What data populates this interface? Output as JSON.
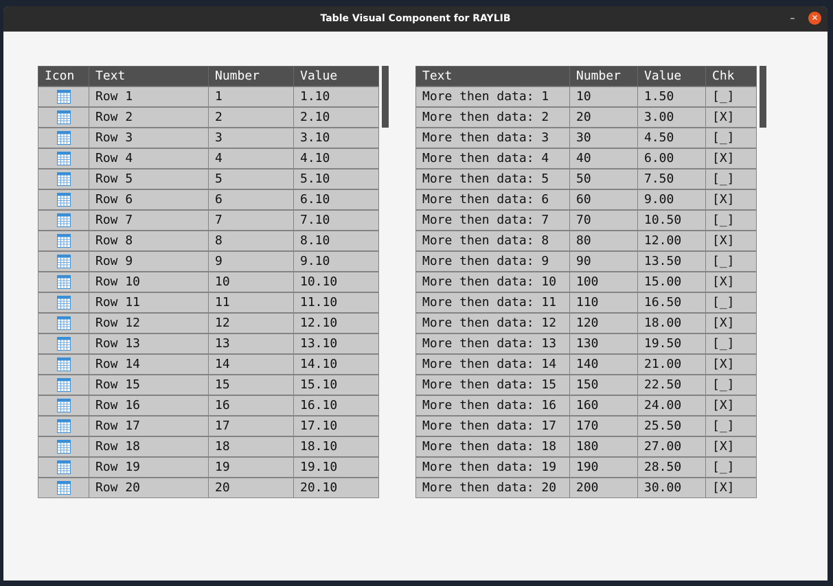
{
  "window": {
    "title": "Table Visual Component for RAYLIB",
    "minimize_glyph": "–",
    "close_glyph": "✕"
  },
  "colors": {
    "close_button": "#e95420",
    "icon_header": "#3a8ed6",
    "icon_fill": "#ffffff",
    "icon_grid": "#6aa7de"
  },
  "left_table": {
    "headers": [
      "Icon",
      "Text",
      "Number",
      "Value"
    ],
    "icon": "table-grid-icon",
    "rows": [
      {
        "text": "Row 1",
        "number": "1",
        "value": "1.10"
      },
      {
        "text": "Row 2",
        "number": "2",
        "value": "2.10"
      },
      {
        "text": "Row 3",
        "number": "3",
        "value": "3.10"
      },
      {
        "text": "Row 4",
        "number": "4",
        "value": "4.10"
      },
      {
        "text": "Row 5",
        "number": "5",
        "value": "5.10"
      },
      {
        "text": "Row 6",
        "number": "6",
        "value": "6.10"
      },
      {
        "text": "Row 7",
        "number": "7",
        "value": "7.10"
      },
      {
        "text": "Row 8",
        "number": "8",
        "value": "8.10"
      },
      {
        "text": "Row 9",
        "number": "9",
        "value": "9.10"
      },
      {
        "text": "Row 10",
        "number": "10",
        "value": "10.10"
      },
      {
        "text": "Row 11",
        "number": "11",
        "value": "11.10"
      },
      {
        "text": "Row 12",
        "number": "12",
        "value": "12.10"
      },
      {
        "text": "Row 13",
        "number": "13",
        "value": "13.10"
      },
      {
        "text": "Row 14",
        "number": "14",
        "value": "14.10"
      },
      {
        "text": "Row 15",
        "number": "15",
        "value": "15.10"
      },
      {
        "text": "Row 16",
        "number": "16",
        "value": "16.10"
      },
      {
        "text": "Row 17",
        "number": "17",
        "value": "17.10"
      },
      {
        "text": "Row 18",
        "number": "18",
        "value": "18.10"
      },
      {
        "text": "Row 19",
        "number": "19",
        "value": "19.10"
      },
      {
        "text": "Row 20",
        "number": "20",
        "value": "20.10"
      }
    ]
  },
  "right_table": {
    "headers": [
      "Text",
      "Number",
      "Value",
      "Chk"
    ],
    "rows": [
      {
        "text": "More then data: 1",
        "number": "10",
        "value": "1.50",
        "chk": "[_]"
      },
      {
        "text": "More then data: 2",
        "number": "20",
        "value": "3.00",
        "chk": "[X]"
      },
      {
        "text": "More then data: 3",
        "number": "30",
        "value": "4.50",
        "chk": "[_]"
      },
      {
        "text": "More then data: 4",
        "number": "40",
        "value": "6.00",
        "chk": "[X]"
      },
      {
        "text": "More then data: 5",
        "number": "50",
        "value": "7.50",
        "chk": "[_]"
      },
      {
        "text": "More then data: 6",
        "number": "60",
        "value": "9.00",
        "chk": "[X]"
      },
      {
        "text": "More then data: 7",
        "number": "70",
        "value": "10.50",
        "chk": "[_]"
      },
      {
        "text": "More then data: 8",
        "number": "80",
        "value": "12.00",
        "chk": "[X]"
      },
      {
        "text": "More then data: 9",
        "number": "90",
        "value": "13.50",
        "chk": "[_]"
      },
      {
        "text": "More then data: 10",
        "number": "100",
        "value": "15.00",
        "chk": "[X]"
      },
      {
        "text": "More then data: 11",
        "number": "110",
        "value": "16.50",
        "chk": "[_]"
      },
      {
        "text": "More then data: 12",
        "number": "120",
        "value": "18.00",
        "chk": "[X]"
      },
      {
        "text": "More then data: 13",
        "number": "130",
        "value": "19.50",
        "chk": "[_]"
      },
      {
        "text": "More then data: 14",
        "number": "140",
        "value": "21.00",
        "chk": "[X]"
      },
      {
        "text": "More then data: 15",
        "number": "150",
        "value": "22.50",
        "chk": "[_]"
      },
      {
        "text": "More then data: 16",
        "number": "160",
        "value": "24.00",
        "chk": "[X]"
      },
      {
        "text": "More then data: 17",
        "number": "170",
        "value": "25.50",
        "chk": "[_]"
      },
      {
        "text": "More then data: 18",
        "number": "180",
        "value": "27.00",
        "chk": "[X]"
      },
      {
        "text": "More then data: 19",
        "number": "190",
        "value": "28.50",
        "chk": "[_]"
      },
      {
        "text": "More then data: 20",
        "number": "200",
        "value": "30.00",
        "chk": "[X]"
      }
    ]
  }
}
